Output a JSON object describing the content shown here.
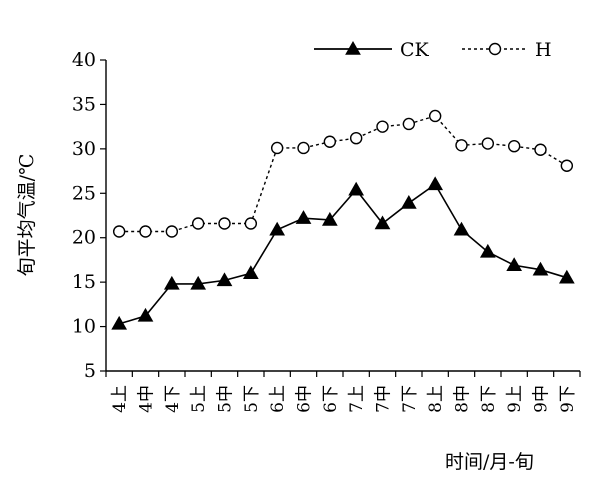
{
  "chart_data": {
    "type": "line",
    "xlabel": "时间/月-旬",
    "ylabel": "旬平均气温/℃",
    "ylim": [
      5,
      40
    ],
    "yticks": [
      5,
      10,
      15,
      20,
      25,
      30,
      35,
      40
    ],
    "grid": false,
    "legend_position": "top-right",
    "categories": [
      "4上",
      "4中",
      "4下",
      "5上",
      "5中",
      "5下",
      "6上",
      "6中",
      "6下",
      "7上",
      "7中",
      "7下",
      "8上",
      "8中",
      "8下",
      "9上",
      "9中",
      "9下"
    ],
    "series": [
      {
        "name": "CK",
        "marker": "filled-triangle",
        "line_style": "solid",
        "color": "#000000",
        "values": [
          10.3,
          11.2,
          14.8,
          14.8,
          15.2,
          16.0,
          20.9,
          22.2,
          22.0,
          25.4,
          21.6,
          23.9,
          26.0,
          20.9,
          18.4,
          16.9,
          16.4,
          15.5
        ]
      },
      {
        "name": "H",
        "marker": "open-circle",
        "line_style": "dotted",
        "color": "#000000",
        "values": [
          20.7,
          20.7,
          20.7,
          21.6,
          21.6,
          21.6,
          30.1,
          30.1,
          30.8,
          31.2,
          32.5,
          32.8,
          33.7,
          30.4,
          30.6,
          30.3,
          29.9,
          28.1
        ]
      }
    ]
  }
}
